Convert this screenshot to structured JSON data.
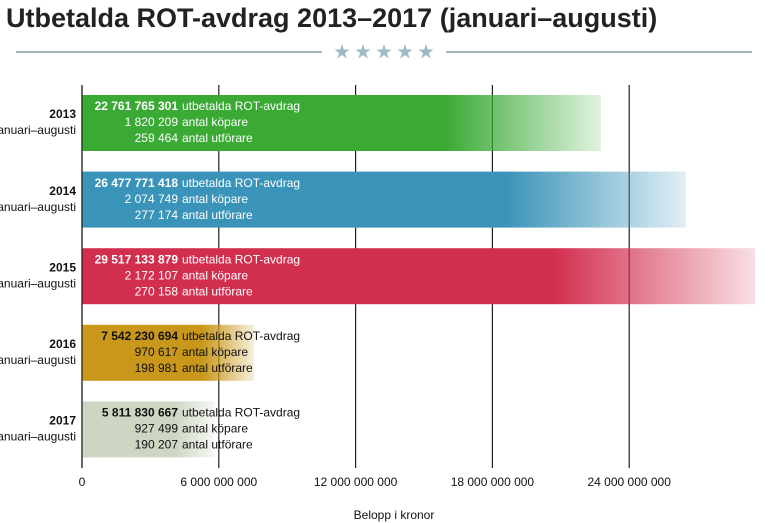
{
  "chart_data": {
    "type": "hbar",
    "title": "Utbetalda ROT-avdrag 2013–2017 (januari–augusti)",
    "x_label": "Belopp i kronor",
    "categories": [
      "2013",
      "2014",
      "2015",
      "2016",
      "2017"
    ],
    "category_sublabel": "januari–augusti",
    "values": [
      22761765301,
      26477771418,
      29517133879,
      7542230694,
      5811830667
    ],
    "value_labels": [
      "22 761 765 301",
      "26 477 771 418",
      "29 517 133 879",
      "7 542 230 694",
      "5 811 830 667"
    ],
    "value_suffix": "utbetalda ROT-avdrag",
    "buyers": [
      1820209,
      2074749,
      2172107,
      970617,
      927499
    ],
    "buyers_labels": [
      "1 820 209",
      "2 074 749",
      "2 172 107",
      "970 617",
      "927 499"
    ],
    "buyers_suffix": "antal köpare",
    "contractors": [
      259464,
      277174,
      270158,
      198981,
      190207
    ],
    "contractors_labels": [
      "259 464",
      "277 174",
      "270 158",
      "198 981",
      "190 207"
    ],
    "contractors_suffix": "antal utförare",
    "colors": [
      "#3aaa35",
      "#3a93b8",
      "#d22f4f",
      "#c9971a",
      "#cdd6c3"
    ],
    "text_colors": [
      "#ffffff",
      "#ffffff",
      "#ffffff",
      "#111111",
      "#111111"
    ],
    "xlim": [
      0,
      30000000000
    ],
    "xticks": [
      0,
      {
        "value": 6000000000,
        "label": "6 000 000 000"
      },
      {
        "value": 12000000000,
        "label": "12 000 000 000"
      },
      {
        "value": 18000000000,
        "label": "18 000 000 000"
      },
      {
        "value": 24000000000,
        "label": "24 000 000 000"
      }
    ],
    "grid": true
  }
}
